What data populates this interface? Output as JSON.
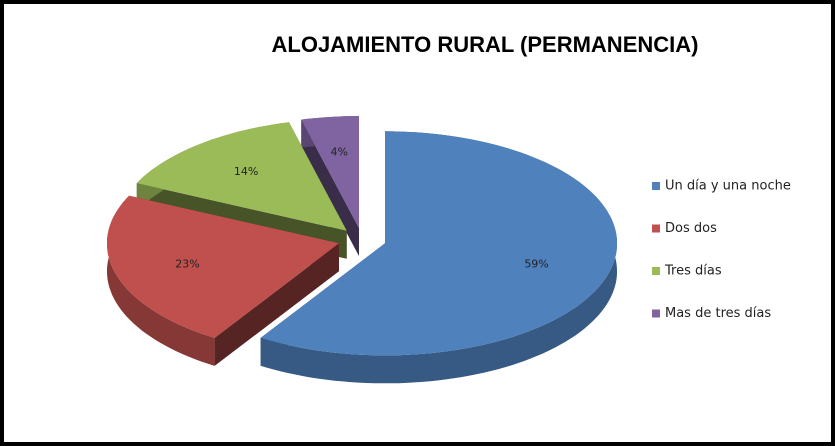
{
  "chart_data": {
    "type": "pie3d",
    "title": "ALOJAMIENTO RURAL (PERMANENCIA)",
    "categories": [
      "Un día y una noche",
      "Dos dos",
      "Tres días",
      "Mas de tres días"
    ],
    "values": [
      59,
      23,
      14,
      4
    ],
    "value_labels": [
      "59%",
      "23%",
      "14%",
      "4%"
    ],
    "colors": [
      "#4f81bd",
      "#c0504d",
      "#9bbb59",
      "#8064a2"
    ],
    "legend": "right"
  }
}
